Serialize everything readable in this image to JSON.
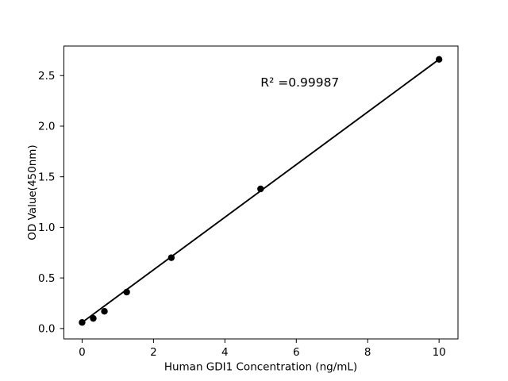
{
  "figure": {
    "background": "#ffffff"
  },
  "chart_data": {
    "type": "scatter",
    "title": "",
    "xlabel": "Human GDI1 Concentration (ng/mL)",
    "ylabel": "OD Value(450nm)",
    "x": [
      0,
      0.3125,
      0.625,
      1.25,
      2.5,
      5,
      10
    ],
    "y": [
      0.06,
      0.1,
      0.17,
      0.36,
      0.7,
      1.38,
      2.66
    ],
    "fit_line": {
      "x": [
        0,
        10
      ],
      "y": [
        0.06,
        2.66
      ]
    },
    "annotation": {
      "text": "R² =0.99987",
      "x": 5.0,
      "y": 2.39
    },
    "r_squared": 0.99987,
    "xticks": {
      "values": [
        0,
        2,
        4,
        6,
        8,
        10
      ],
      "labels": [
        "0",
        "2",
        "4",
        "6",
        "8",
        "10"
      ]
    },
    "yticks": {
      "values": [
        0,
        0.5,
        1,
        1.5,
        2,
        2.5
      ],
      "labels": [
        "0.0",
        "0.5",
        "1.0",
        "1.5",
        "2.0",
        "2.5"
      ]
    },
    "xlim": [
      -0.51,
      10.53
    ],
    "ylim": [
      -0.103,
      2.792
    ],
    "grid": false,
    "legend": null,
    "marker_color": "#000000",
    "line_color": "#000000",
    "axis_color": "#000000"
  }
}
